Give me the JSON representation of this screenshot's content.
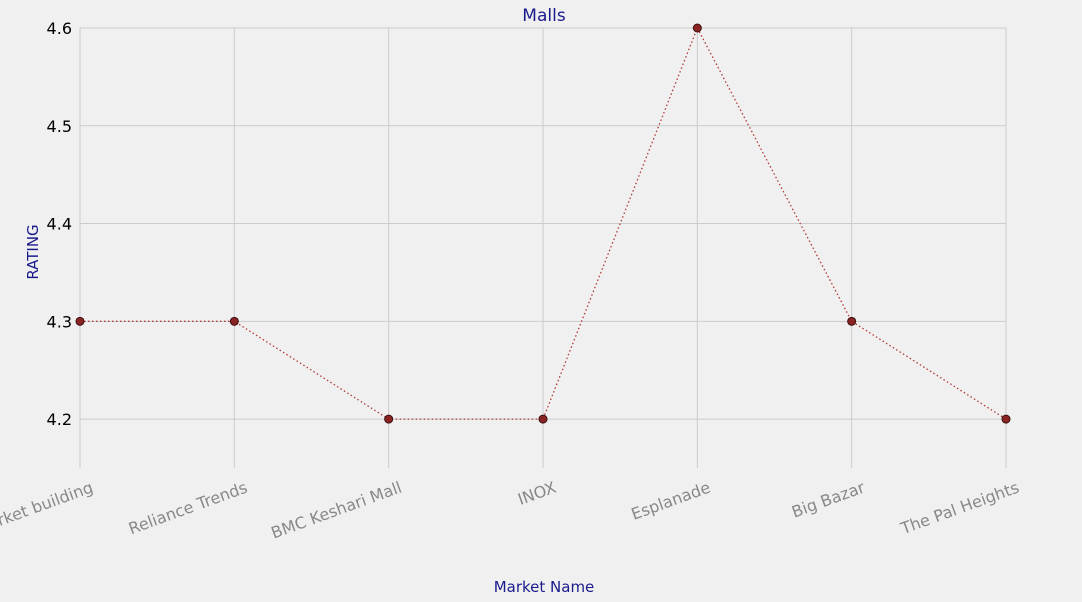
{
  "chart_data": {
    "type": "line",
    "title": "Malls",
    "xlabel": "Market Name",
    "ylabel": "RATING",
    "categories": [
      "Market building",
      "Reliance Trends",
      "BMC Keshari Mall",
      "INOX",
      "Esplanade",
      "Big Bazar",
      "The Pal Heights"
    ],
    "series": [
      {
        "values": [
          4.3,
          4.3,
          4.2,
          4.2,
          4.6,
          4.3,
          4.2
        ]
      }
    ],
    "ylim": [
      4.15,
      4.6
    ],
    "yticks": [
      "4.2",
      "4.3",
      "4.4",
      "4.5",
      "4.6"
    ],
    "grid": true,
    "line_style": "dotted",
    "colors": {
      "background": "#f0f0f0",
      "grid": "#cbcbcb",
      "line": "#b03a3a",
      "marker_fill": "#8b2323",
      "marker_edge": "#3a1010",
      "title": "#1a1a8c",
      "xtick": "#888888",
      "ytick": "#000000"
    }
  }
}
